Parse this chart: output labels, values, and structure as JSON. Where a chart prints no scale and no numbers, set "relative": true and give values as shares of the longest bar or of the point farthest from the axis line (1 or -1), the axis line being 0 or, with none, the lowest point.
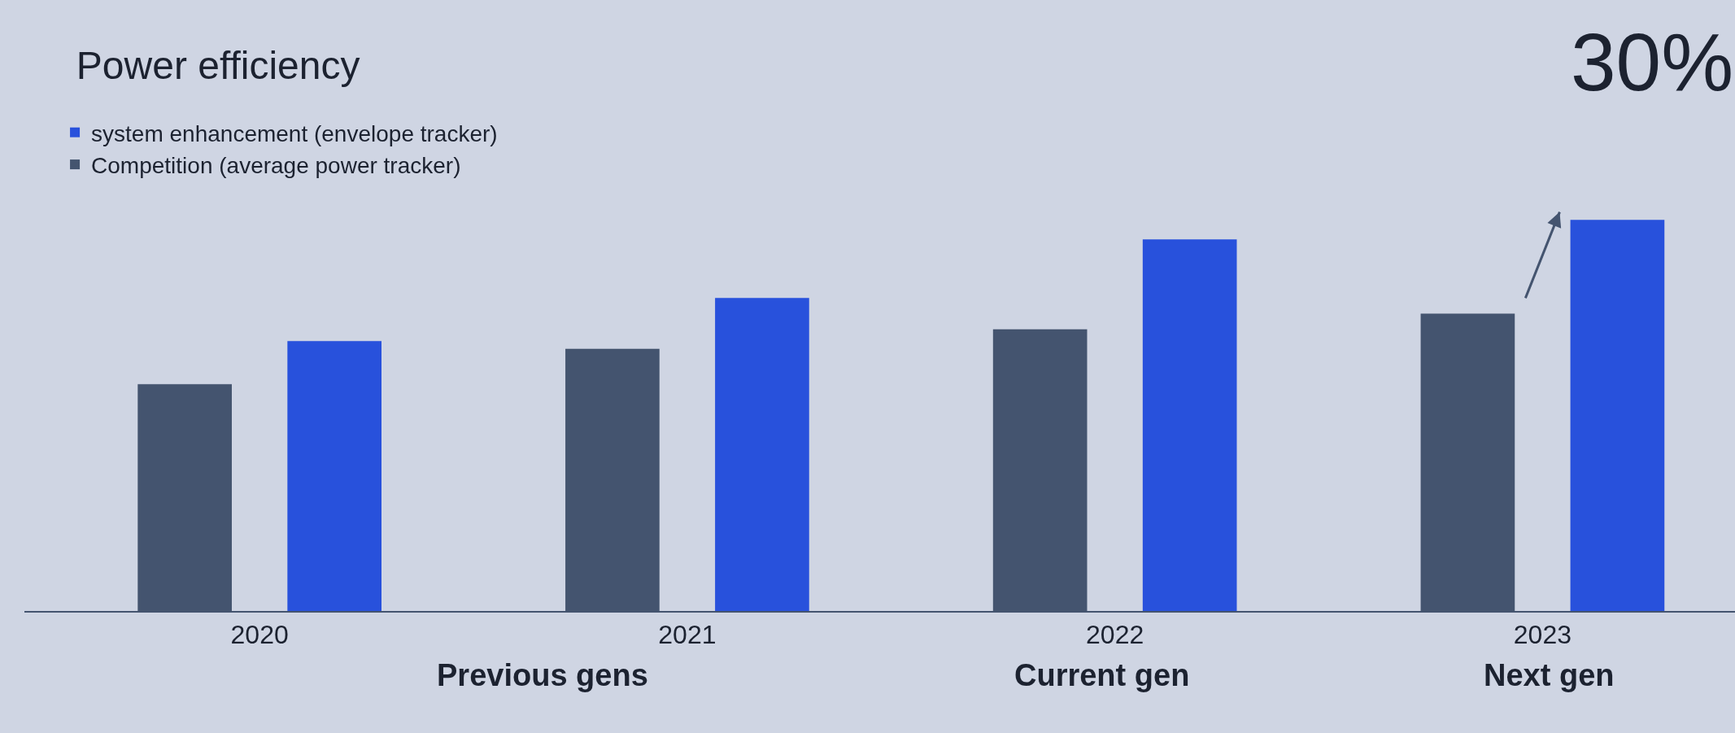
{
  "chart_data": {
    "type": "bar",
    "title": "Power efficiency",
    "relative": true,
    "categories": [
      "2020",
      "2021",
      "2022",
      "2023"
    ],
    "series": [
      {
        "name": "Competition (average power tracker)",
        "color": "#44546f",
        "values": [
          0.58,
          0.67,
          0.72,
          0.76
        ]
      },
      {
        "name": "system enhancement (envelope tracker)",
        "color": "#2851dc",
        "values": [
          0.69,
          0.8,
          0.95,
          1
        ]
      }
    ],
    "legend": "top left",
    "grid": false,
    "annotations": [
      "30%",
      "Previous gens",
      "Current gen",
      "Next gen"
    ]
  }
}
